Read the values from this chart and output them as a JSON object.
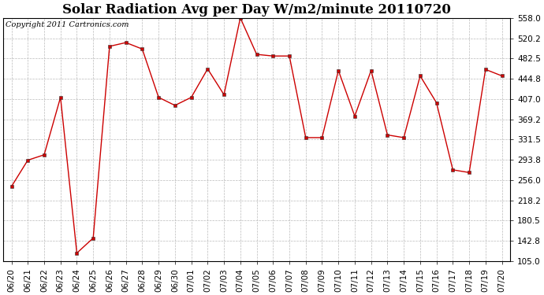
{
  "title": "Solar Radiation Avg per Day W/m2/minute 20110720",
  "copyright": "Copyright 2011 Cartronics.com",
  "x_labels": [
    "06/20",
    "06/21",
    "06/22",
    "06/23",
    "06/24",
    "06/25",
    "06/26",
    "06/27",
    "06/28",
    "06/29",
    "06/30",
    "07/01",
    "07/02",
    "07/03",
    "07/04",
    "07/05",
    "07/06",
    "07/07",
    "07/08",
    "07/09",
    "07/10",
    "07/11",
    "07/12",
    "07/13",
    "07/14",
    "07/15",
    "07/16",
    "07/17",
    "07/18",
    "07/19",
    "07/20"
  ],
  "y_values": [
    244,
    293,
    303,
    410,
    120,
    148,
    505,
    512,
    500,
    410,
    395,
    410,
    463,
    415,
    558,
    490,
    487,
    487,
    335,
    335,
    460,
    375,
    460,
    340,
    335,
    450,
    400,
    275,
    270,
    462,
    450
  ],
  "line_color": "#cc0000",
  "marker": "s",
  "marker_size": 2.5,
  "grid_color": "#bbbbbb",
  "background_color": "#ffffff",
  "ylim": [
    105.0,
    558.0
  ],
  "yticks": [
    105.0,
    142.8,
    180.5,
    218.2,
    256.0,
    293.8,
    331.5,
    369.2,
    407.0,
    444.8,
    482.5,
    520.2,
    558.0
  ],
  "title_fontsize": 12,
  "tick_fontsize": 7.5,
  "copyright_fontsize": 7
}
